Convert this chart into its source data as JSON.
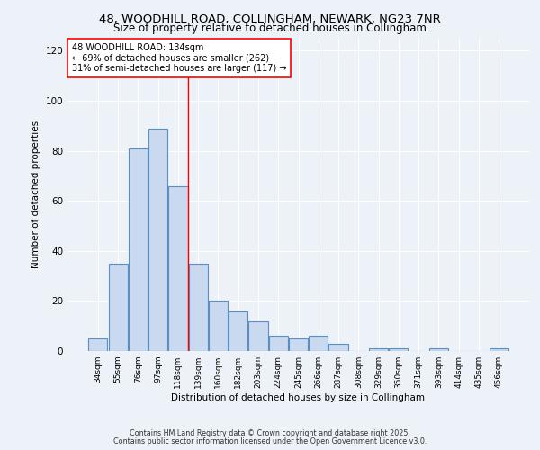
{
  "title_line1": "48, WOODHILL ROAD, COLLINGHAM, NEWARK, NG23 7NR",
  "title_line2": "Size of property relative to detached houses in Collingham",
  "xlabel": "Distribution of detached houses by size in Collingham",
  "ylabel": "Number of detached properties",
  "categories": [
    "34sqm",
    "55sqm",
    "76sqm",
    "97sqm",
    "118sqm",
    "139sqm",
    "160sqm",
    "182sqm",
    "203sqm",
    "224sqm",
    "245sqm",
    "266sqm",
    "287sqm",
    "308sqm",
    "329sqm",
    "350sqm",
    "371sqm",
    "393sqm",
    "414sqm",
    "435sqm",
    "456sqm"
  ],
  "values": [
    5,
    35,
    81,
    89,
    66,
    35,
    20,
    16,
    12,
    6,
    5,
    6,
    3,
    0,
    1,
    1,
    0,
    1,
    0,
    0,
    1
  ],
  "bar_color": "#c8d9f0",
  "bar_edge_color": "#5a8fc3",
  "annotation_box_text": "48 WOODHILL ROAD: 134sqm\n← 69% of detached houses are smaller (262)\n31% of semi-detached houses are larger (117) →",
  "redline_x": 4.5,
  "ylim": [
    0,
    125
  ],
  "yticks": [
    0,
    20,
    40,
    60,
    80,
    100,
    120
  ],
  "bg_color": "#edf2f9",
  "plot_bg_color": "#edf2f9",
  "grid_color": "#ffffff",
  "footer_line1": "Contains HM Land Registry data © Crown copyright and database right 2025.",
  "footer_line2": "Contains public sector information licensed under the Open Government Licence v3.0."
}
